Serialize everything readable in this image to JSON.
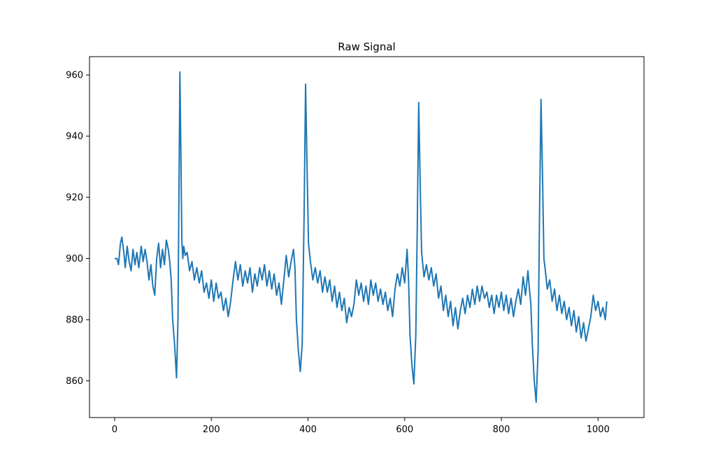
{
  "chart_data": {
    "type": "line",
    "title": "Raw Signal",
    "xlabel": "",
    "ylabel": "",
    "xlim": [
      -52,
      1095
    ],
    "ylim": [
      848,
      966
    ],
    "xticks": [
      0,
      200,
      400,
      600,
      800,
      1000
    ],
    "yticks": [
      860,
      880,
      900,
      920,
      940,
      960
    ],
    "grid": false,
    "legend": "none",
    "series": [
      {
        "color": "#1f77b4",
        "points": [
          [
            0,
            900
          ],
          [
            5,
            900
          ],
          [
            8,
            898
          ],
          [
            12,
            905
          ],
          [
            15,
            907
          ],
          [
            19,
            902
          ],
          [
            22,
            897
          ],
          [
            26,
            904
          ],
          [
            30,
            899
          ],
          [
            34,
            896
          ],
          [
            38,
            903
          ],
          [
            42,
            898
          ],
          [
            46,
            902
          ],
          [
            50,
            897
          ],
          [
            55,
            904
          ],
          [
            59,
            899
          ],
          [
            63,
            903
          ],
          [
            67,
            899
          ],
          [
            71,
            893
          ],
          [
            75,
            898
          ],
          [
            79,
            891
          ],
          [
            83,
            888
          ],
          [
            87,
            900
          ],
          [
            91,
            905
          ],
          [
            95,
            897
          ],
          [
            99,
            903
          ],
          [
            103,
            898
          ],
          [
            107,
            906
          ],
          [
            111,
            903
          ],
          [
            114,
            899
          ],
          [
            117,
            893
          ],
          [
            120,
            880
          ],
          [
            124,
            872
          ],
          [
            128,
            861
          ],
          [
            131,
            880
          ],
          [
            133,
            920
          ],
          [
            135,
            961
          ],
          [
            137,
            935
          ],
          [
            139,
            906
          ],
          [
            141,
            900
          ],
          [
            143,
            904
          ],
          [
            146,
            901
          ],
          [
            150,
            902
          ],
          [
            155,
            896
          ],
          [
            160,
            899
          ],
          [
            165,
            893
          ],
          [
            170,
            897
          ],
          [
            175,
            892
          ],
          [
            180,
            896
          ],
          [
            185,
            889
          ],
          [
            190,
            892
          ],
          [
            195,
            887
          ],
          [
            200,
            893
          ],
          [
            205,
            886
          ],
          [
            210,
            892
          ],
          [
            215,
            887
          ],
          [
            220,
            889
          ],
          [
            225,
            883
          ],
          [
            230,
            887
          ],
          [
            235,
            881
          ],
          [
            240,
            886
          ],
          [
            245,
            893
          ],
          [
            250,
            899
          ],
          [
            255,
            893
          ],
          [
            260,
            898
          ],
          [
            265,
            891
          ],
          [
            270,
            896
          ],
          [
            275,
            892
          ],
          [
            280,
            897
          ],
          [
            285,
            889
          ],
          [
            290,
            895
          ],
          [
            295,
            891
          ],
          [
            300,
            897
          ],
          [
            305,
            893
          ],
          [
            310,
            898
          ],
          [
            315,
            891
          ],
          [
            320,
            896
          ],
          [
            325,
            890
          ],
          [
            330,
            895
          ],
          [
            335,
            888
          ],
          [
            340,
            892
          ],
          [
            345,
            885
          ],
          [
            350,
            893
          ],
          [
            355,
            901
          ],
          [
            360,
            894
          ],
          [
            365,
            899
          ],
          [
            370,
            903
          ],
          [
            373,
            897
          ],
          [
            376,
            880
          ],
          [
            380,
            870
          ],
          [
            384,
            863
          ],
          [
            388,
            872
          ],
          [
            392,
            915
          ],
          [
            395,
            957
          ],
          [
            398,
            930
          ],
          [
            401,
            905
          ],
          [
            405,
            899
          ],
          [
            410,
            893
          ],
          [
            415,
            897
          ],
          [
            420,
            892
          ],
          [
            425,
            896
          ],
          [
            430,
            889
          ],
          [
            435,
            894
          ],
          [
            440,
            889
          ],
          [
            445,
            893
          ],
          [
            450,
            886
          ],
          [
            455,
            891
          ],
          [
            460,
            884
          ],
          [
            465,
            889
          ],
          [
            470,
            883
          ],
          [
            475,
            887
          ],
          [
            480,
            879
          ],
          [
            485,
            884
          ],
          [
            490,
            881
          ],
          [
            495,
            885
          ],
          [
            500,
            893
          ],
          [
            505,
            888
          ],
          [
            510,
            892
          ],
          [
            515,
            886
          ],
          [
            520,
            891
          ],
          [
            525,
            885
          ],
          [
            530,
            893
          ],
          [
            535,
            888
          ],
          [
            540,
            892
          ],
          [
            545,
            886
          ],
          [
            550,
            890
          ],
          [
            555,
            885
          ],
          [
            560,
            889
          ],
          [
            565,
            883
          ],
          [
            570,
            887
          ],
          [
            575,
            881
          ],
          [
            580,
            890
          ],
          [
            585,
            895
          ],
          [
            590,
            891
          ],
          [
            595,
            897
          ],
          [
            600,
            892
          ],
          [
            605,
            903
          ],
          [
            608,
            893
          ],
          [
            611,
            875
          ],
          [
            615,
            865
          ],
          [
            619,
            859
          ],
          [
            623,
            875
          ],
          [
            626,
            910
          ],
          [
            629,
            951
          ],
          [
            632,
            925
          ],
          [
            635,
            902
          ],
          [
            640,
            894
          ],
          [
            645,
            898
          ],
          [
            650,
            893
          ],
          [
            655,
            897
          ],
          [
            660,
            891
          ],
          [
            665,
            895
          ],
          [
            670,
            887
          ],
          [
            675,
            891
          ],
          [
            680,
            883
          ],
          [
            685,
            888
          ],
          [
            690,
            881
          ],
          [
            695,
            886
          ],
          [
            700,
            878
          ],
          [
            705,
            884
          ],
          [
            710,
            877
          ],
          [
            715,
            883
          ],
          [
            720,
            887
          ],
          [
            725,
            882
          ],
          [
            730,
            888
          ],
          [
            735,
            884
          ],
          [
            740,
            890
          ],
          [
            745,
            885
          ],
          [
            750,
            891
          ],
          [
            755,
            886
          ],
          [
            760,
            891
          ],
          [
            765,
            887
          ],
          [
            770,
            889
          ],
          [
            775,
            884
          ],
          [
            780,
            888
          ],
          [
            785,
            882
          ],
          [
            790,
            888
          ],
          [
            795,
            884
          ],
          [
            800,
            889
          ],
          [
            805,
            883
          ],
          [
            810,
            888
          ],
          [
            815,
            882
          ],
          [
            820,
            887
          ],
          [
            825,
            881
          ],
          [
            830,
            886
          ],
          [
            835,
            890
          ],
          [
            840,
            885
          ],
          [
            845,
            894
          ],
          [
            850,
            888
          ],
          [
            855,
            896
          ],
          [
            858,
            890
          ],
          [
            861,
            885
          ],
          [
            864,
            872
          ],
          [
            868,
            860
          ],
          [
            872,
            853
          ],
          [
            876,
            870
          ],
          [
            879,
            915
          ],
          [
            882,
            952
          ],
          [
            885,
            928
          ],
          [
            888,
            900
          ],
          [
            891,
            896
          ],
          [
            895,
            890
          ],
          [
            900,
            893
          ],
          [
            905,
            886
          ],
          [
            910,
            890
          ],
          [
            915,
            883
          ],
          [
            920,
            888
          ],
          [
            925,
            882
          ],
          [
            930,
            886
          ],
          [
            935,
            880
          ],
          [
            940,
            884
          ],
          [
            945,
            878
          ],
          [
            950,
            883
          ],
          [
            955,
            876
          ],
          [
            960,
            881
          ],
          [
            965,
            874
          ],
          [
            970,
            879
          ],
          [
            975,
            873
          ],
          [
            980,
            877
          ],
          [
            985,
            881
          ],
          [
            990,
            888
          ],
          [
            995,
            883
          ],
          [
            1000,
            886
          ],
          [
            1005,
            881
          ],
          [
            1010,
            884
          ],
          [
            1015,
            880
          ],
          [
            1018,
            886
          ]
        ]
      }
    ]
  }
}
